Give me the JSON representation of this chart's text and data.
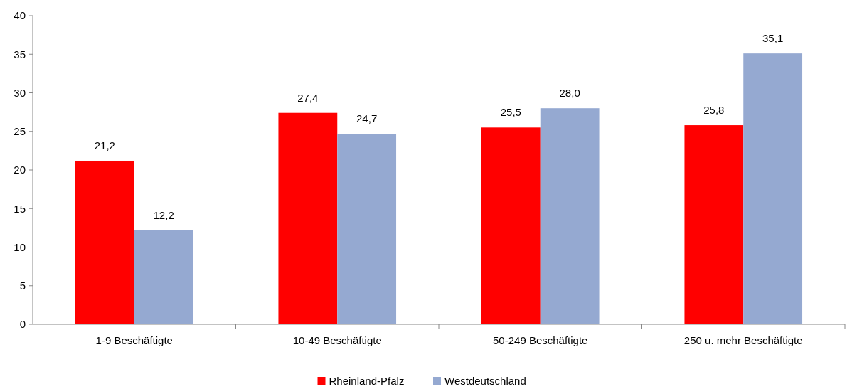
{
  "chart_data": {
    "type": "bar",
    "categories": [
      "1-9 Beschäftigte",
      "10-49 Beschäftigte",
      "50-249 Beschäftigte",
      "250 u. mehr Beschäftigte"
    ],
    "series": [
      {
        "name": "Rheinland-Pfalz",
        "color": "#ff0000",
        "values": [
          21.2,
          27.4,
          25.5,
          25.8
        ],
        "value_labels": [
          "21,2",
          "27,4",
          "25,5",
          "25,8"
        ]
      },
      {
        "name": "Westdeutschland",
        "color": "#95a9d1",
        "values": [
          12.2,
          24.7,
          28.0,
          35.1
        ],
        "value_labels": [
          "12,2",
          "24,7",
          "28,0",
          "35,1"
        ]
      }
    ],
    "ylim": [
      0,
      40
    ],
    "yticks": [
      0,
      5,
      10,
      15,
      20,
      25,
      30,
      35,
      40
    ],
    "grid": false,
    "legend": "bottom"
  }
}
